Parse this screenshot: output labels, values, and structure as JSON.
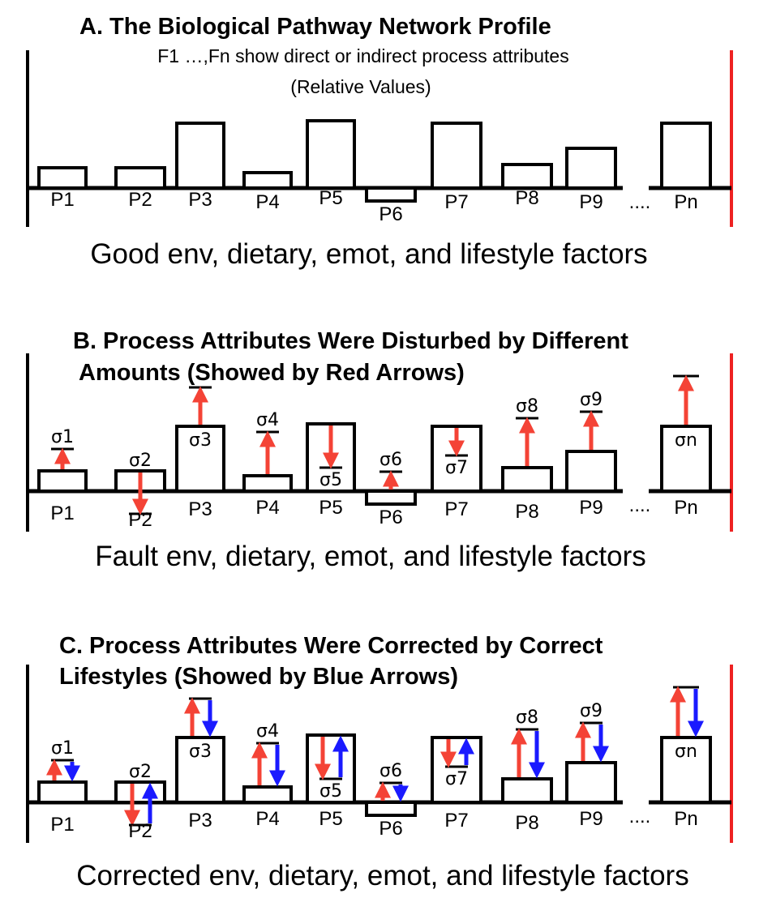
{
  "panel_a": {
    "title": "A. The Biological Pathway Network Profile",
    "subtitle_line1": "F1 …,Fn show direct or indirect process attributes",
    "subtitle_line2": "(Relative Values)",
    "footer": "Good env, dietary, emot, and lifestyle factors"
  },
  "panel_b": {
    "title_line1": "B. Process Attributes Were Disturbed by Different",
    "title_line2": "Amounts (Showed by Red Arrows)",
    "footer": "Fault env, dietary, emot, and lifestyle factors"
  },
  "panel_c": {
    "title_line1": "C. Process Attributes Were Corrected by Correct",
    "title_line2": "Lifestyles (Showed by Blue Arrows)",
    "footer": "Corrected env, dietary, emot, and lifestyle factors"
  },
  "processes": [
    "P1",
    "P2",
    "P3",
    "P4",
    "P5",
    "P6",
    "P7",
    "P8",
    "P9",
    "Pn"
  ],
  "ellipsis": "....",
  "sigmas": [
    "σ1",
    "σ2",
    "σ3",
    "σ4",
    "σ5",
    "σ6",
    "σ7",
    "σ8",
    "σ9",
    "σn"
  ],
  "colors": {
    "disturb": "#f44336",
    "correct": "#1a1aff",
    "boundary": "#ee2222",
    "ink": "#000000"
  }
}
